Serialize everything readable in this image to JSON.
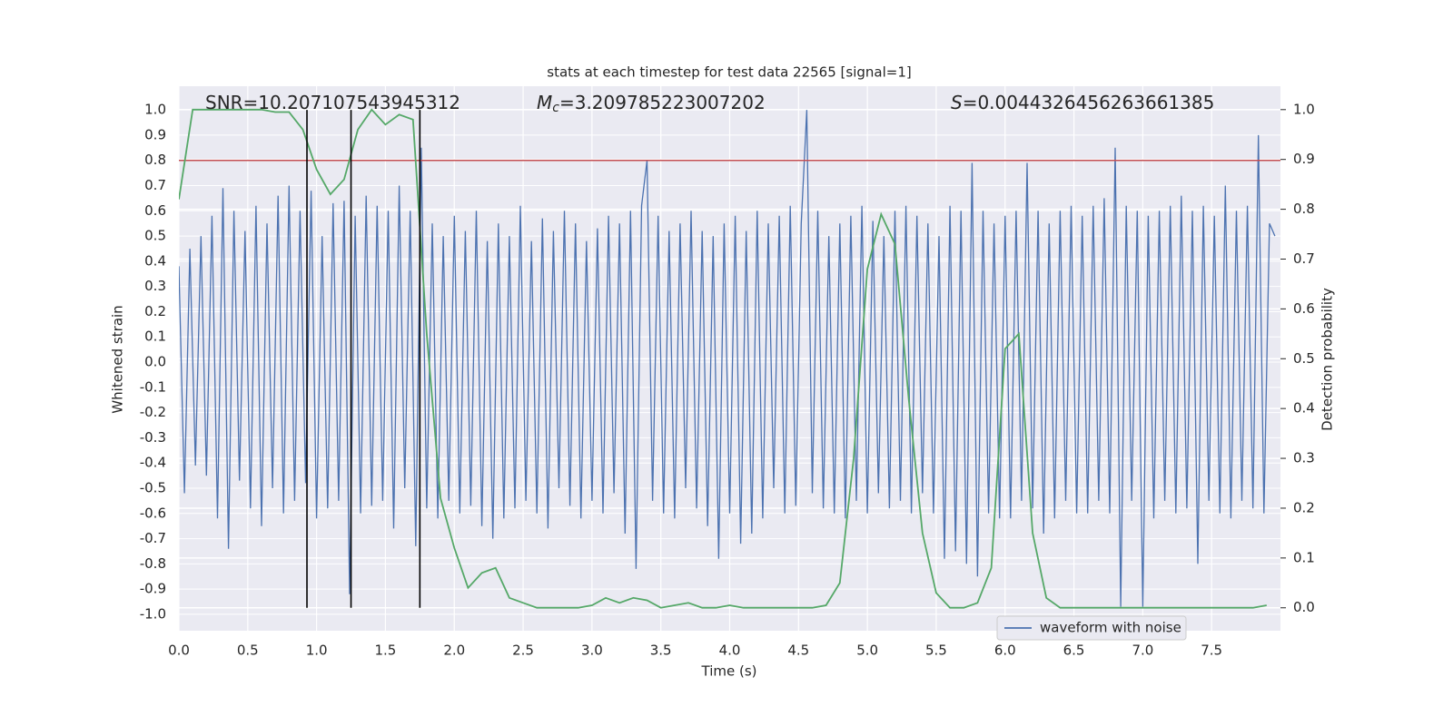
{
  "chart_data": {
    "type": "line",
    "title": "stats at each timestep for test data 22565 [signal=1]",
    "xlabel": "Time (s)",
    "ylabel": "Whitened strain",
    "y2label": "Detection probability",
    "annotations": [
      {
        "text": "SNR=10.207107543945312"
      },
      {
        "symbol": "M",
        "subscript": "c",
        "text": "=3.209785223007202"
      },
      {
        "symbol": "S",
        "text": "=0.0044326456263661385"
      }
    ],
    "xlim": [
      0,
      8
    ],
    "ylim": [
      -1.065,
      1.094
    ],
    "y2lim": [
      -0.046,
      1.047
    ],
    "xticks": [
      {
        "value": 0,
        "label": "0.0"
      },
      0.5,
      {
        "value": 1,
        "label": "1.0"
      },
      1.5,
      {
        "value": 2,
        "label": "2.0"
      },
      2.5,
      {
        "value": 3,
        "label": "3.0"
      },
      3.5,
      {
        "value": 4,
        "label": "4.0"
      },
      4.5,
      {
        "value": 5,
        "label": "5.0"
      },
      5.5,
      {
        "value": 6,
        "label": "6.0"
      },
      6.5,
      {
        "value": 7,
        "label": "7.0"
      },
      7.5
    ],
    "yticks": [
      {
        "value": -1,
        "label": "-1.0"
      },
      -0.9,
      -0.8,
      -0.7,
      -0.6,
      -0.5,
      -0.4,
      -0.3,
      -0.2,
      -0.1,
      {
        "value": 0,
        "label": "0.0"
      },
      0.1,
      0.2,
      0.3,
      0.4,
      0.5,
      0.6,
      0.7,
      0.8,
      0.9,
      {
        "value": 1,
        "label": "1.0"
      }
    ],
    "y2ticks": [
      {
        "value": 0,
        "label": "0.0"
      },
      0.1,
      0.2,
      0.3,
      0.4,
      0.5,
      0.6,
      0.7,
      0.8,
      0.9,
      {
        "value": 1,
        "label": "1.0"
      }
    ],
    "grid": true,
    "legend": "lower right",
    "threshold": 0.8,
    "threshold_color": "#c44e52",
    "vlines": [
      0.93,
      1.25,
      1.75
    ],
    "vline_color": "#000000",
    "series": [
      {
        "name": "waveform with noise",
        "color": "#4c72b0",
        "x": [
          0,
          0.04,
          0.08,
          0.12,
          0.16,
          0.2,
          0.24,
          0.28,
          0.32,
          0.36,
          0.4,
          0.44,
          0.48,
          0.52,
          0.56,
          0.6,
          0.64,
          0.68,
          0.72,
          0.76,
          0.8,
          0.84,
          0.88,
          0.92,
          0.96,
          1,
          1.04,
          1.08,
          1.12,
          1.16,
          1.2,
          1.24,
          1.28,
          1.32,
          1.36,
          1.4,
          1.44,
          1.48,
          1.52,
          1.56,
          1.6,
          1.64,
          1.68,
          1.72,
          1.76,
          1.8,
          1.84,
          1.88,
          1.92,
          1.96,
          2,
          2.04,
          2.08,
          2.12,
          2.16,
          2.2,
          2.24,
          2.28,
          2.32,
          2.36,
          2.4,
          2.44,
          2.48,
          2.52,
          2.56,
          2.6,
          2.64,
          2.68,
          2.72,
          2.76,
          2.8,
          2.84,
          2.88,
          2.92,
          2.96,
          3,
          3.04,
          3.08,
          3.12,
          3.16,
          3.2,
          3.24,
          3.28,
          3.32,
          3.36,
          3.4,
          3.44,
          3.48,
          3.52,
          3.56,
          3.6,
          3.64,
          3.68,
          3.72,
          3.76,
          3.8,
          3.84,
          3.88,
          3.92,
          3.96,
          4,
          4.04,
          4.08,
          4.12,
          4.16,
          4.2,
          4.24,
          4.28,
          4.32,
          4.36,
          4.4,
          4.44,
          4.48,
          4.52,
          4.56,
          4.6,
          4.64,
          4.68,
          4.72,
          4.76,
          4.8,
          4.84,
          4.88,
          4.92,
          4.96,
          5,
          5.04,
          5.08,
          5.12,
          5.16,
          5.2,
          5.24,
          5.28,
          5.32,
          5.36,
          5.4,
          5.44,
          5.48,
          5.52,
          5.56,
          5.6,
          5.64,
          5.68,
          5.72,
          5.76,
          5.8,
          5.84,
          5.88,
          5.92,
          5.96,
          6,
          6.04,
          6.08,
          6.12,
          6.16,
          6.2,
          6.24,
          6.28,
          6.32,
          6.36,
          6.4,
          6.44,
          6.48,
          6.52,
          6.56,
          6.6,
          6.64,
          6.68,
          6.72,
          6.76,
          6.8,
          6.84,
          6.88,
          6.92,
          6.96,
          7,
          7.04,
          7.08,
          7.12,
          7.16,
          7.2,
          7.24,
          7.28,
          7.32,
          7.36,
          7.4,
          7.44,
          7.48,
          7.52,
          7.56,
          7.6,
          7.64,
          7.68,
          7.72,
          7.76,
          7.8,
          7.84,
          7.88,
          7.92,
          7.96
        ],
        "values": [
          0.38,
          -0.52,
          0.45,
          -0.41,
          0.5,
          -0.45,
          0.58,
          -0.62,
          0.69,
          -0.74,
          0.6,
          -0.47,
          0.52,
          -0.58,
          0.62,
          -0.65,
          0.55,
          -0.5,
          0.66,
          -0.6,
          0.7,
          -0.55,
          0.6,
          -0.48,
          0.68,
          -0.62,
          0.5,
          -0.58,
          0.63,
          -0.55,
          0.64,
          -0.92,
          0.58,
          -0.6,
          0.66,
          -0.57,
          0.62,
          -0.55,
          0.6,
          -0.66,
          0.7,
          -0.5,
          0.6,
          -0.73,
          0.85,
          -0.58,
          0.55,
          -0.62,
          0.5,
          -0.55,
          0.58,
          -0.6,
          0.52,
          -0.57,
          0.6,
          -0.65,
          0.48,
          -0.7,
          0.55,
          -0.62,
          0.5,
          -0.58,
          0.62,
          -0.55,
          0.48,
          -0.6,
          0.57,
          -0.66,
          0.52,
          -0.5,
          0.6,
          -0.57,
          0.55,
          -0.62,
          0.48,
          -0.55,
          0.53,
          -0.6,
          0.58,
          -0.52,
          0.55,
          -0.68,
          0.6,
          -0.82,
          0.62,
          0.8,
          -0.55,
          0.58,
          -0.6,
          0.52,
          -0.62,
          0.55,
          -0.5,
          0.6,
          -0.58,
          0.52,
          -0.65,
          0.5,
          -0.78,
          0.55,
          -0.6,
          0.58,
          -0.72,
          0.52,
          -0.68,
          0.6,
          -0.62,
          0.55,
          -0.5,
          0.58,
          -0.6,
          0.62,
          -0.57,
          0.55,
          1.0,
          -0.52,
          0.6,
          -0.58,
          0.5,
          -0.6,
          0.55,
          -0.62,
          0.58,
          -0.55,
          0.62,
          -0.6,
          0.56,
          -0.52,
          0.5,
          -0.58,
          0.6,
          -0.55,
          0.62,
          -0.6,
          0.58,
          -0.52,
          0.55,
          -0.6,
          0.5,
          -0.78,
          0.62,
          -0.75,
          0.6,
          -0.8,
          0.79,
          -0.85,
          0.6,
          -0.6,
          0.55,
          -0.62,
          0.58,
          -0.62,
          0.6,
          -0.55,
          0.79,
          -0.58,
          0.6,
          -0.68,
          0.55,
          -0.62,
          0.6,
          -0.55,
          0.62,
          -0.6,
          0.58,
          -0.6,
          0.62,
          -0.55,
          0.65,
          -0.6,
          0.85,
          -0.97,
          0.62,
          -0.55,
          0.6,
          -0.97,
          0.58,
          -0.62,
          0.6,
          -0.55,
          0.62,
          -0.6,
          0.66,
          -0.58,
          0.6,
          -0.8,
          0.62,
          -0.55,
          0.58,
          -0.6,
          0.7,
          -0.62,
          0.6,
          -0.55,
          0.62,
          -0.58,
          0.9,
          -0.6,
          0.55,
          0.5
        ]
      },
      {
        "color": "#55a868",
        "axis": "y2",
        "x": [
          0,
          0.1,
          0.2,
          0.3,
          0.4,
          0.5,
          0.6,
          0.7,
          0.8,
          0.9,
          1,
          1.1,
          1.2,
          1.3,
          1.4,
          1.5,
          1.6,
          1.7,
          1.8,
          1.9,
          2,
          2.1,
          2.2,
          2.3,
          2.4,
          2.5,
          2.6,
          2.7,
          2.8,
          2.9,
          3,
          3.1,
          3.2,
          3.3,
          3.4,
          3.5,
          3.6,
          3.7,
          3.8,
          3.9,
          4,
          4.1,
          4.2,
          4.3,
          4.4,
          4.5,
          4.6,
          4.7,
          4.8,
          4.9,
          5,
          5.1,
          5.2,
          5.3,
          5.4,
          5.5,
          5.6,
          5.7,
          5.8,
          5.9,
          6,
          6.1,
          6.2,
          6.3,
          6.4,
          6.5,
          6.6,
          6.7,
          6.8,
          6.9,
          7,
          7.1,
          7.2,
          7.3,
          7.4,
          7.5,
          7.6,
          7.7,
          7.8,
          7.9
        ],
        "values": [
          0.82,
          1.0,
          1.0,
          1.0,
          1.0,
          1.0,
          1.0,
          0.995,
          0.995,
          0.96,
          0.88,
          0.83,
          0.86,
          0.96,
          1.0,
          0.97,
          0.99,
          0.98,
          0.55,
          0.22,
          0.12,
          0.04,
          0.07,
          0.08,
          0.02,
          0.01,
          0,
          0,
          0,
          0,
          0.005,
          0.02,
          0.01,
          0.02,
          0.015,
          0,
          0.005,
          0.01,
          0,
          0,
          0.005,
          0,
          0,
          0,
          0,
          0,
          0,
          0.005,
          0.05,
          0.3,
          0.68,
          0.79,
          0.73,
          0.42,
          0.15,
          0.03,
          0,
          0,
          0.01,
          0.08,
          0.52,
          0.55,
          0.15,
          0.02,
          0,
          0,
          0,
          0,
          0,
          0,
          0,
          0,
          0,
          0,
          0,
          0,
          0,
          0,
          0,
          0.005
        ]
      }
    ]
  }
}
